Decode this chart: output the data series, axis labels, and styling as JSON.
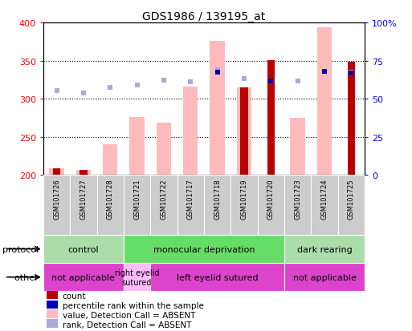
{
  "title": "GDS1986 / 139195_at",
  "samples": [
    "GSM101726",
    "GSM101727",
    "GSM101728",
    "GSM101721",
    "GSM101722",
    "GSM101717",
    "GSM101718",
    "GSM101719",
    "GSM101720",
    "GSM101723",
    "GSM101724",
    "GSM101725"
  ],
  "value_absent": [
    209,
    207,
    240,
    276,
    269,
    316,
    376,
    315,
    null,
    275,
    394,
    null
  ],
  "count_vals": [
    209,
    207,
    null,
    null,
    null,
    null,
    null,
    315,
    351,
    null,
    null,
    349
  ],
  "rank_absent": [
    311,
    308,
    315,
    318,
    324,
    322,
    338,
    326,
    323,
    323,
    336,
    335
  ],
  "percentile_vals": [
    null,
    null,
    null,
    null,
    null,
    null,
    335,
    null,
    323,
    null,
    336,
    334
  ],
  "count_color": "#bb0000",
  "value_absent_color": "#ffbbbb",
  "rank_absent_color": "#aaaadd",
  "percentile_color": "#0000bb",
  "y_left_ticks": [
    200,
    250,
    300,
    350,
    400
  ],
  "y_right_ticks_pct": [
    0,
    25,
    50,
    75,
    100
  ],
  "y_right_labels": [
    "0",
    "25",
    "50",
    "75",
    "100%"
  ],
  "protocol_groups": [
    {
      "label": "control",
      "start": 0,
      "end": 3,
      "color": "#aaddaa"
    },
    {
      "label": "monocular deprivation",
      "start": 3,
      "end": 9,
      "color": "#66dd66"
    },
    {
      "label": "dark rearing",
      "start": 9,
      "end": 12,
      "color": "#aaddaa"
    }
  ],
  "other_groups": [
    {
      "label": "not applicable",
      "start": 0,
      "end": 3,
      "color": "#dd44cc"
    },
    {
      "label": "right eyelid\nsutured",
      "start": 3,
      "end": 4,
      "color": "#ffbbff"
    },
    {
      "label": "left eyelid sutured",
      "start": 4,
      "end": 9,
      "color": "#dd44cc"
    },
    {
      "label": "not applicable",
      "start": 9,
      "end": 12,
      "color": "#dd44cc"
    }
  ],
  "protocol_label": "protocol",
  "other_label": "other",
  "legend_items": [
    {
      "label": "count",
      "color": "#bb0000"
    },
    {
      "label": "percentile rank within the sample",
      "color": "#0000bb"
    },
    {
      "label": "value, Detection Call = ABSENT",
      "color": "#ffbbbb"
    },
    {
      "label": "rank, Detection Call = ABSENT",
      "color": "#aaaadd"
    }
  ],
  "bar_width": 0.55,
  "count_bar_width": 0.28
}
